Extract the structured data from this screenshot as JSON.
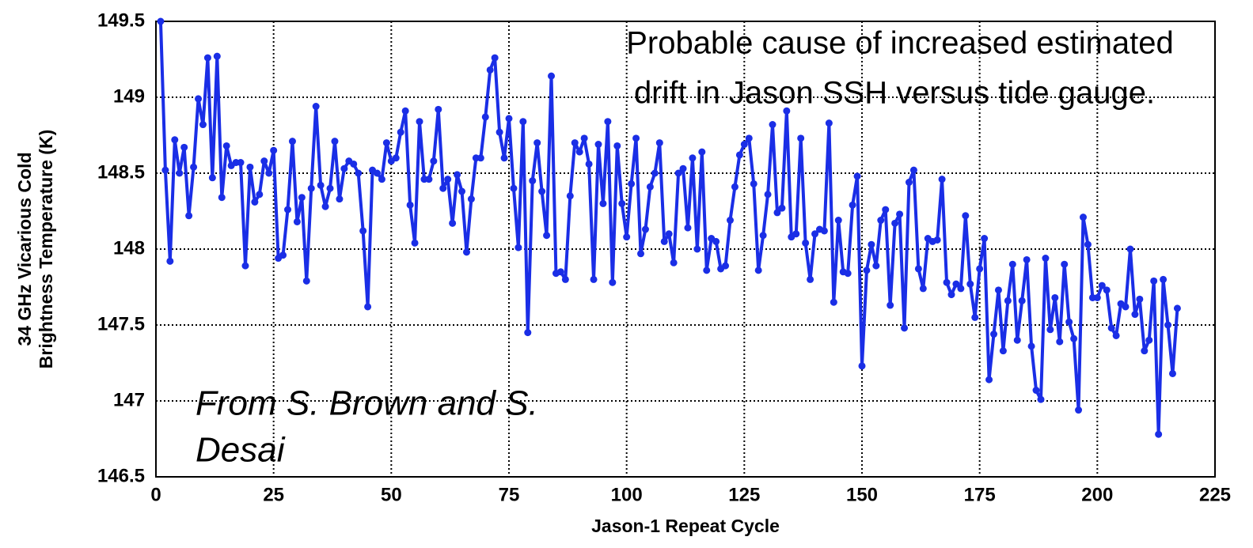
{
  "chart_data": {
    "type": "line",
    "ylabel": [
      "34 GHz Vicarious Cold",
      "Brightness Temperature (K)"
    ],
    "xlabel": "Jason-1 Repeat Cycle",
    "annotations": [
      [
        "Probable cause of increased estimated",
        "drift in Jason SSH versus tide gauge."
      ],
      [
        "From S. Brown and S.",
        "Desai"
      ]
    ],
    "xlim": [
      0,
      225
    ],
    "xticks": [
      0,
      25,
      50,
      75,
      100,
      125,
      150,
      175,
      200,
      225
    ],
    "ylim": [
      146.5,
      149.5
    ],
    "yticks": [
      146.5,
      147,
      147.5,
      148,
      148.5,
      149,
      149.5
    ],
    "grid": true,
    "series": [
      {
        "color": "#1a2ee6",
        "x": [
          1,
          2,
          3,
          4,
          5,
          6,
          7,
          8,
          9,
          10,
          11,
          12,
          13,
          14,
          15,
          16,
          17,
          18,
          19,
          20,
          21,
          22,
          23,
          24,
          25,
          26,
          27,
          28,
          29,
          30,
          31,
          32,
          33,
          34,
          35,
          36,
          37,
          38,
          39,
          40,
          41,
          42,
          43,
          44,
          45,
          46,
          47,
          48,
          49,
          50,
          51,
          52,
          53,
          54,
          55,
          56,
          57,
          58,
          59,
          60,
          61,
          62,
          63,
          64,
          65,
          66,
          67,
          68,
          69,
          70,
          71,
          72,
          73,
          74,
          75,
          76,
          77,
          78,
          79,
          80,
          81,
          82,
          83,
          84,
          85,
          86,
          87,
          88,
          89,
          90,
          91,
          92,
          93,
          94,
          95,
          96,
          97,
          98,
          99,
          100,
          101,
          102,
          103,
          104,
          105,
          106,
          107,
          108,
          109,
          110,
          111,
          112,
          113,
          114,
          115,
          116,
          117,
          118,
          119,
          120,
          121,
          122,
          123,
          124,
          125,
          126,
          127,
          128,
          129,
          130,
          131,
          132,
          133,
          134,
          135,
          136,
          137,
          138,
          139,
          140,
          141,
          142,
          143,
          144,
          145,
          146,
          147,
          148,
          149,
          150,
          151,
          152,
          153,
          154,
          155,
          156,
          157,
          158,
          159,
          160,
          161,
          162,
          163,
          164,
          165,
          166,
          167,
          168,
          169,
          170,
          171,
          172,
          173,
          174,
          175,
          176,
          177,
          178,
          179,
          180,
          181,
          182,
          183,
          184,
          185,
          186,
          187,
          188,
          189,
          190,
          191,
          192,
          193,
          194,
          195,
          196,
          197,
          198,
          199,
          200,
          201,
          202,
          203,
          204,
          205,
          206,
          207,
          208,
          209,
          210,
          211,
          212,
          213,
          214,
          215,
          216,
          217
        ],
        "values": [
          149.5,
          148.52,
          147.92,
          148.72,
          148.5,
          148.67,
          148.22,
          148.54,
          148.99,
          148.82,
          149.26,
          148.47,
          149.27,
          148.34,
          148.68,
          148.55,
          148.57,
          148.57,
          147.89,
          148.54,
          148.31,
          148.36,
          148.58,
          148.5,
          148.65,
          147.94,
          147.96,
          148.26,
          148.71,
          148.18,
          148.34,
          147.79,
          148.4,
          148.94,
          148.42,
          148.28,
          148.4,
          148.71,
          148.33,
          148.53,
          148.58,
          148.56,
          148.5,
          148.12,
          147.62,
          148.52,
          148.5,
          148.46,
          148.7,
          148.58,
          148.6,
          148.77,
          148.91,
          148.29,
          148.04,
          148.84,
          148.46,
          148.46,
          148.58,
          148.92,
          148.4,
          148.46,
          148.17,
          148.49,
          148.38,
          147.98,
          148.33,
          148.6,
          148.6,
          148.87,
          149.18,
          149.26,
          148.77,
          148.6,
          148.86,
          148.4,
          148.01,
          148.84,
          147.45,
          148.45,
          148.7,
          148.38,
          148.09,
          149.14,
          147.84,
          147.85,
          147.8,
          148.35,
          148.7,
          148.64,
          148.73,
          148.56,
          147.8,
          148.69,
          148.3,
          148.84,
          147.78,
          148.68,
          148.3,
          148.08,
          148.43,
          148.73,
          147.97,
          148.13,
          148.41,
          148.5,
          148.7,
          148.05,
          148.1,
          147.91,
          148.5,
          148.53,
          148.14,
          148.6,
          148.0,
          148.64,
          147.86,
          148.07,
          148.05,
          147.87,
          147.89,
          148.19,
          148.41,
          148.62,
          148.69,
          148.73,
          148.43,
          147.86,
          148.09,
          148.36,
          148.82,
          148.24,
          148.27,
          148.91,
          148.08,
          148.1,
          148.73,
          148.04,
          147.8,
          148.1,
          148.13,
          148.12,
          148.83,
          147.65,
          148.19,
          147.85,
          147.84,
          148.29,
          148.48,
          147.23,
          147.86,
          148.03,
          147.89,
          148.19,
          148.26,
          147.63,
          148.17,
          148.23,
          147.48,
          148.44,
          148.52,
          147.87,
          147.74,
          148.07,
          148.05,
          148.06,
          148.46,
          147.78,
          147.7,
          147.77,
          147.74,
          148.22,
          147.77,
          147.55,
          147.87,
          148.07,
          147.14,
          147.44,
          147.73,
          147.33,
          147.66,
          147.9,
          147.4,
          147.66,
          147.93,
          147.36,
          147.07,
          147.01,
          147.94,
          147.47,
          147.68,
          147.39,
          147.9,
          147.52,
          147.41,
          146.94,
          148.21,
          148.03,
          147.68,
          147.68,
          147.76,
          147.73,
          147.48,
          147.43,
          147.64,
          147.62,
          148.0,
          147.57,
          147.67,
          147.33,
          147.4,
          147.79,
          146.78,
          147.8,
          147.5,
          147.18,
          147.61
        ]
      }
    ]
  }
}
